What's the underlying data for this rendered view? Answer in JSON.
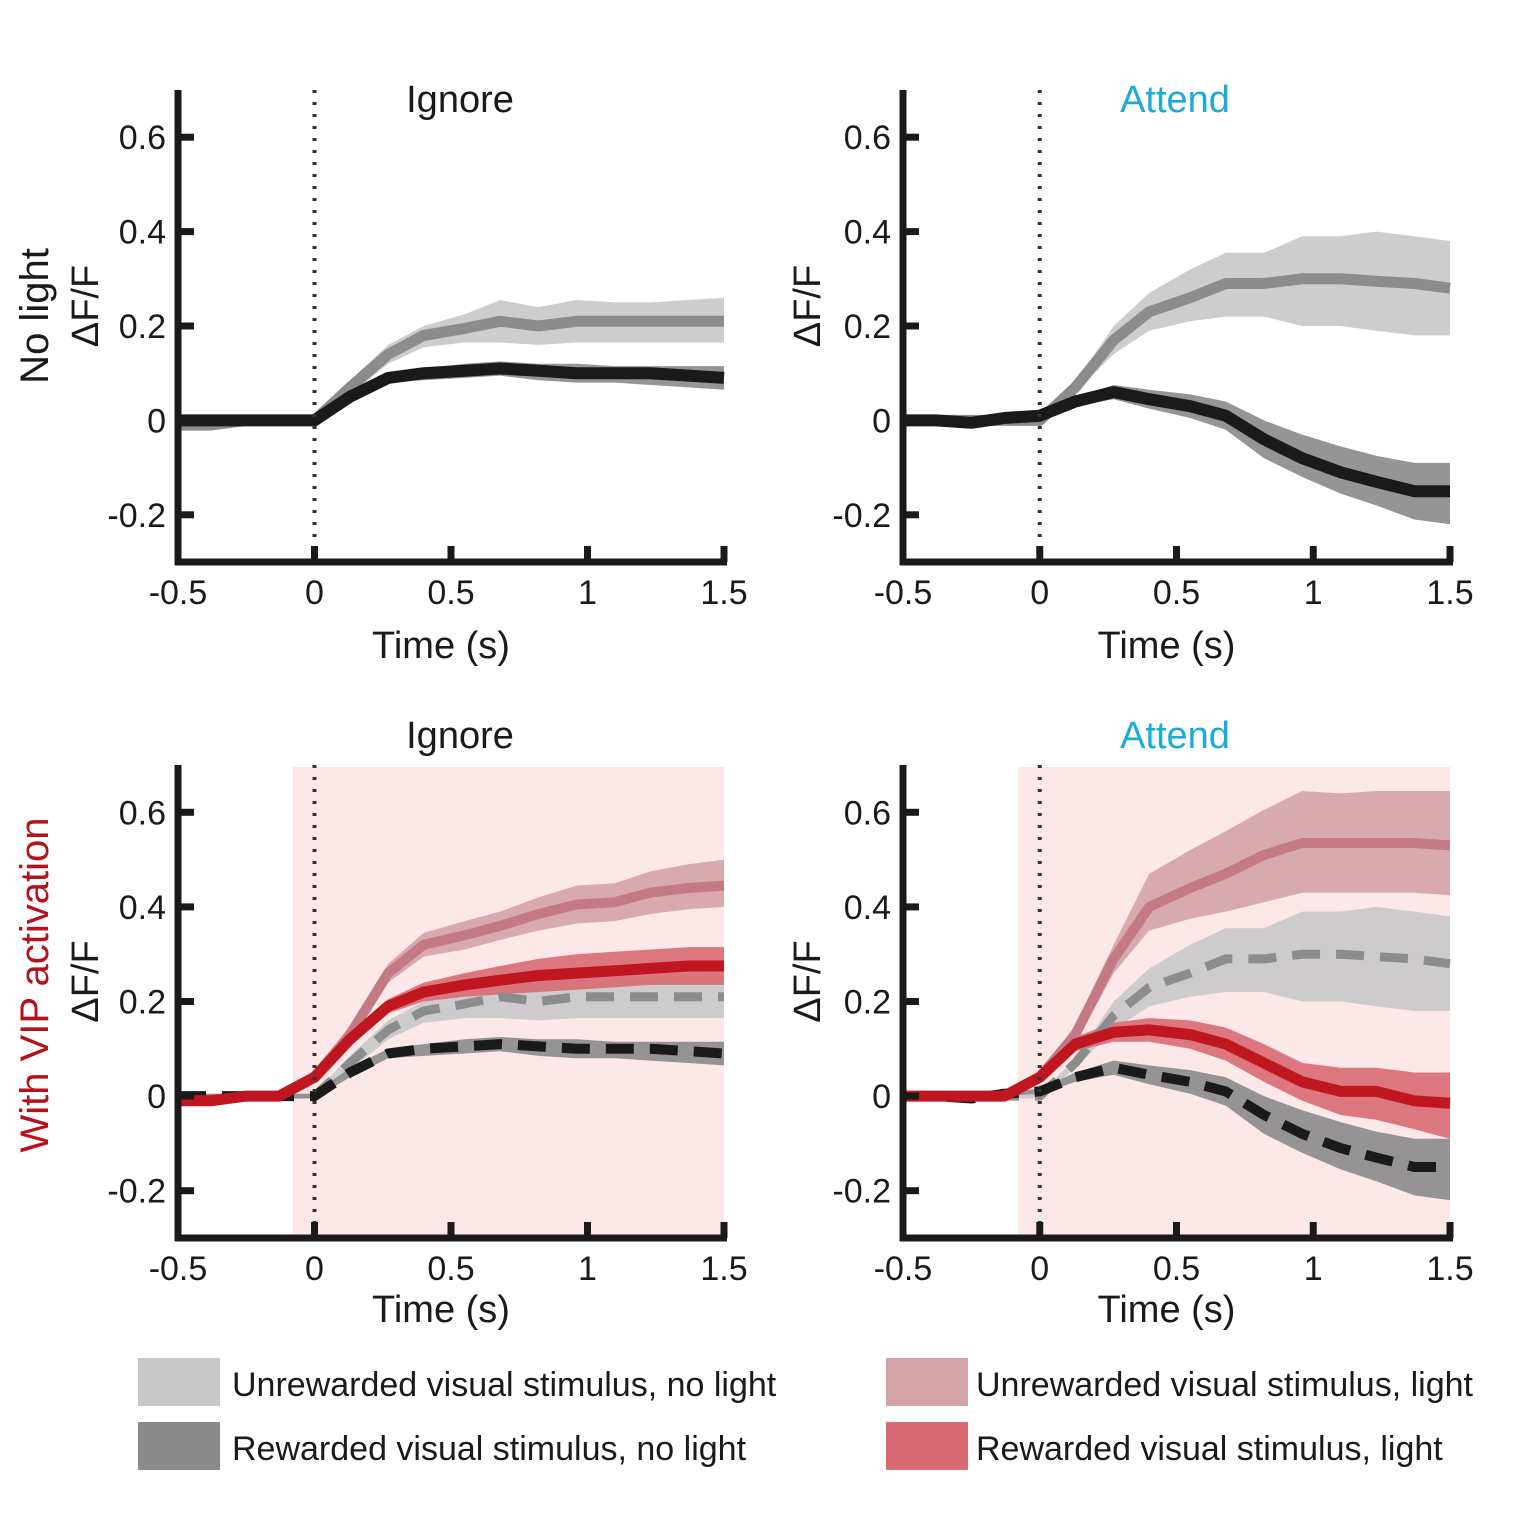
{
  "row_labels": [
    {
      "text": "No light",
      "color": "#1a1a1a"
    },
    {
      "text": "With VIP activation",
      "color": "#b5121b"
    }
  ],
  "colors": {
    "unrewarded_nolight_band": "#c8c8c8",
    "unrewarded_nolight_line": "#8c8c8c",
    "rewarded_nolight_band": "#8a8a8a",
    "rewarded_nolight_line": "#1a1a1a",
    "unrewarded_light_band": "#d4a3a8",
    "unrewarded_light_line": "#c47a83",
    "rewarded_light_band": "#d86a73",
    "rewarded_light_line": "#c0161f",
    "light_period": "#fce8e8",
    "attend_title": "#1aacd8",
    "ignore_title": "#1a1a1a"
  },
  "legend": [
    {
      "label": "Unrewarded visual stimulus, no light",
      "color": "#c8c8c8"
    },
    {
      "label": "Rewarded visual stimulus, no light",
      "color": "#8a8a8a"
    },
    {
      "label": "Unrewarded visual stimulus, light",
      "color": "#d4a3a8"
    },
    {
      "label": "Rewarded visual stimulus, light",
      "color": "#d86a73"
    }
  ],
  "chart_data": [
    {
      "type": "line",
      "title": "Ignore",
      "title_color": "#1a1a1a",
      "xlabel": "Time (s)",
      "ylabel": "ΔF/F",
      "xlim": [
        -0.5,
        1.5
      ],
      "ylim": [
        -0.3,
        0.7
      ],
      "xticks": [
        "-0.5",
        "0",
        "0.5",
        "1",
        "1.5"
      ],
      "xtick_values": [
        -0.5,
        0,
        0.5,
        1,
        1.5
      ],
      "yticks": [
        "-0.2",
        "0",
        "0.2",
        "0.4",
        "0.6"
      ],
      "ytick_values": [
        -0.2,
        0,
        0.2,
        0.4,
        0.6
      ],
      "light_period": null,
      "x": [
        -0.5,
        -0.38,
        -0.25,
        -0.13,
        0,
        0.13,
        0.27,
        0.4,
        0.55,
        0.68,
        0.82,
        0.96,
        1.1,
        1.23,
        1.37,
        1.5
      ],
      "series": [
        {
          "name": "Unrewarded visual stimulus, no light",
          "key": "unrewarded_nolight",
          "dashed": false,
          "width": 11,
          "values": [
            -0.01,
            -0.01,
            0.0,
            0.0,
            0.0,
            0.07,
            0.14,
            0.18,
            0.195,
            0.21,
            0.2,
            0.21,
            0.21,
            0.21,
            0.21,
            0.21
          ],
          "upper": [
            0.0,
            0.0,
            0.005,
            0.005,
            0.005,
            0.085,
            0.16,
            0.2,
            0.225,
            0.255,
            0.24,
            0.255,
            0.25,
            0.25,
            0.255,
            0.26
          ],
          "lower": [
            -0.02,
            -0.02,
            -0.005,
            -0.005,
            -0.005,
            0.055,
            0.12,
            0.155,
            0.165,
            0.165,
            0.16,
            0.165,
            0.165,
            0.165,
            0.165,
            0.165
          ]
        },
        {
          "name": "Rewarded visual stimulus, no light",
          "key": "rewarded_nolight",
          "dashed": false,
          "width": 12,
          "values": [
            0.0,
            0.0,
            0.0,
            0.0,
            0.0,
            0.05,
            0.09,
            0.1,
            0.105,
            0.11,
            0.105,
            0.1,
            0.1,
            0.1,
            0.095,
            0.09
          ],
          "upper": [
            0.005,
            0.005,
            0.005,
            0.005,
            0.005,
            0.06,
            0.1,
            0.11,
            0.12,
            0.125,
            0.12,
            0.12,
            0.115,
            0.115,
            0.115,
            0.115
          ],
          "lower": [
            -0.005,
            -0.005,
            -0.005,
            -0.005,
            -0.005,
            0.04,
            0.08,
            0.085,
            0.09,
            0.095,
            0.085,
            0.08,
            0.08,
            0.075,
            0.07,
            0.065
          ]
        }
      ]
    },
    {
      "type": "line",
      "title": "Attend",
      "title_color": "#1aacd8",
      "xlabel": "Time (s)",
      "ylabel": "ΔF/F",
      "xlim": [
        -0.5,
        1.5
      ],
      "ylim": [
        -0.3,
        0.7
      ],
      "xticks": [
        "-0.5",
        "0",
        "0.5",
        "1",
        "1.5"
      ],
      "xtick_values": [
        -0.5,
        0,
        0.5,
        1,
        1.5
      ],
      "yticks": [
        "-0.2",
        "0",
        "0.2",
        "0.4",
        "0.6"
      ],
      "yticks_values_note": "",
      "ytick_values": [
        -0.2,
        0,
        0.2,
        0.4,
        0.6
      ],
      "light_period": null,
      "x": [
        -0.5,
        -0.38,
        -0.25,
        -0.13,
        0,
        0.13,
        0.27,
        0.4,
        0.55,
        0.68,
        0.82,
        0.96,
        1.1,
        1.23,
        1.37,
        1.5
      ],
      "series": [
        {
          "name": "Unrewarded visual stimulus, no light",
          "key": "unrewarded_nolight",
          "dashed": false,
          "width": 11,
          "values": [
            0.0,
            0.0,
            0.0,
            0.0,
            0.0,
            0.07,
            0.17,
            0.23,
            0.26,
            0.29,
            0.29,
            0.3,
            0.3,
            0.295,
            0.29,
            0.28
          ],
          "upper": [
            0.005,
            0.005,
            0.005,
            0.005,
            0.005,
            0.08,
            0.2,
            0.27,
            0.32,
            0.355,
            0.355,
            0.39,
            0.39,
            0.4,
            0.39,
            0.38
          ],
          "lower": [
            -0.005,
            -0.005,
            -0.005,
            -0.005,
            -0.005,
            0.06,
            0.14,
            0.19,
            0.21,
            0.22,
            0.22,
            0.2,
            0.2,
            0.19,
            0.18,
            0.18
          ]
        },
        {
          "name": "Rewarded visual stimulus, no light",
          "key": "rewarded_nolight",
          "dashed": false,
          "width": 12,
          "values": [
            0.0,
            0.0,
            -0.005,
            0.005,
            0.01,
            0.04,
            0.06,
            0.045,
            0.03,
            0.01,
            -0.04,
            -0.08,
            -0.11,
            -0.13,
            -0.15,
            -0.15
          ],
          "upper": [
            0.005,
            0.005,
            0.0,
            0.01,
            0.015,
            0.05,
            0.075,
            0.065,
            0.055,
            0.04,
            0.0,
            -0.03,
            -0.055,
            -0.075,
            -0.09,
            -0.09
          ],
          "lower": [
            -0.005,
            -0.005,
            -0.01,
            0.0,
            0.005,
            0.03,
            0.045,
            0.025,
            0.005,
            -0.02,
            -0.08,
            -0.12,
            -0.155,
            -0.18,
            -0.21,
            -0.22
          ]
        }
      ]
    },
    {
      "type": "line",
      "title": "Ignore",
      "title_color": "#1a1a1a",
      "xlabel": "Time (s)",
      "ylabel": "ΔF/F",
      "xlim": [
        -0.5,
        1.5
      ],
      "ylim": [
        -0.3,
        0.7
      ],
      "xticks": [
        "-0.5",
        "0",
        "0.5",
        "1",
        "1.5"
      ],
      "xtick_values": [
        -0.5,
        0,
        0.5,
        1,
        1.5
      ],
      "yticks": [
        "-0.2",
        "0",
        "0.2",
        "0.4",
        "0.6"
      ],
      "ytick_values": [
        -0.2,
        0,
        0.2,
        0.4,
        0.6
      ],
      "light_period": [
        -0.08,
        1.5
      ],
      "x": [
        -0.5,
        -0.38,
        -0.25,
        -0.13,
        0,
        0.13,
        0.27,
        0.4,
        0.55,
        0.68,
        0.82,
        0.96,
        1.1,
        1.23,
        1.37,
        1.5
      ],
      "series": [
        {
          "name": "Unrewarded visual stimulus, no light",
          "key": "unrewarded_nolight",
          "dashed": true,
          "width": 9,
          "values": [
            0.0,
            0.0,
            0.0,
            0.0,
            0.0,
            0.07,
            0.14,
            0.18,
            0.195,
            0.21,
            0.2,
            0.21,
            0.21,
            0.21,
            0.21,
            0.21
          ],
          "upper": [
            0.005,
            0.005,
            0.005,
            0.005,
            0.005,
            0.085,
            0.16,
            0.2,
            0.225,
            0.255,
            0.24,
            0.255,
            0.25,
            0.25,
            0.255,
            0.26
          ],
          "lower": [
            -0.005,
            -0.005,
            -0.005,
            -0.005,
            -0.005,
            0.055,
            0.12,
            0.155,
            0.165,
            0.165,
            0.16,
            0.165,
            0.165,
            0.165,
            0.165,
            0.165
          ]
        },
        {
          "name": "Rewarded visual stimulus, no light",
          "key": "rewarded_nolight",
          "dashed": true,
          "width": 10,
          "values": [
            0.0,
            0.0,
            0.0,
            0.0,
            0.0,
            0.05,
            0.09,
            0.1,
            0.105,
            0.11,
            0.105,
            0.1,
            0.1,
            0.1,
            0.095,
            0.09
          ],
          "upper": [
            0.005,
            0.005,
            0.005,
            0.005,
            0.005,
            0.06,
            0.1,
            0.11,
            0.12,
            0.125,
            0.12,
            0.12,
            0.115,
            0.115,
            0.115,
            0.115
          ],
          "lower": [
            -0.005,
            -0.005,
            -0.005,
            -0.005,
            -0.005,
            0.04,
            0.08,
            0.085,
            0.09,
            0.095,
            0.085,
            0.08,
            0.08,
            0.075,
            0.07,
            0.065
          ]
        },
        {
          "name": "Unrewarded visual stimulus, light",
          "key": "unrewarded_light",
          "dashed": false,
          "width": 10,
          "values": [
            -0.01,
            -0.01,
            0.0,
            0.0,
            0.04,
            0.13,
            0.26,
            0.32,
            0.34,
            0.36,
            0.385,
            0.405,
            0.41,
            0.43,
            0.44,
            0.445
          ],
          "upper": [
            0.0,
            0.0,
            0.005,
            0.005,
            0.05,
            0.15,
            0.28,
            0.345,
            0.37,
            0.39,
            0.42,
            0.445,
            0.45,
            0.475,
            0.49,
            0.5
          ],
          "lower": [
            -0.02,
            -0.02,
            -0.005,
            -0.005,
            0.03,
            0.11,
            0.24,
            0.295,
            0.31,
            0.33,
            0.35,
            0.365,
            0.37,
            0.385,
            0.395,
            0.4
          ]
        },
        {
          "name": "Rewarded visual stimulus, light",
          "key": "rewarded_light",
          "dashed": false,
          "width": 11,
          "values": [
            -0.01,
            -0.01,
            0.0,
            0.0,
            0.04,
            0.12,
            0.19,
            0.22,
            0.235,
            0.245,
            0.255,
            0.26,
            0.265,
            0.27,
            0.275,
            0.275
          ],
          "upper": [
            0.0,
            0.0,
            0.005,
            0.005,
            0.05,
            0.135,
            0.205,
            0.24,
            0.26,
            0.275,
            0.29,
            0.3,
            0.305,
            0.31,
            0.315,
            0.315
          ],
          "lower": [
            -0.02,
            -0.02,
            -0.005,
            -0.005,
            0.03,
            0.105,
            0.175,
            0.2,
            0.21,
            0.215,
            0.22,
            0.225,
            0.23,
            0.235,
            0.235,
            0.235
          ]
        }
      ]
    },
    {
      "type": "line",
      "title": "Attend",
      "title_color": "#1aacd8",
      "xlabel": "Time (s)",
      "ylabel": "ΔF/F",
      "xlim": [
        -0.5,
        1.5
      ],
      "ylim": [
        -0.3,
        0.7
      ],
      "xticks": [
        "-0.5",
        "0",
        "0.5",
        "1",
        "1.5"
      ],
      "xtick_values": [
        -0.5,
        0,
        0.5,
        1,
        1.5
      ],
      "yticks": [
        "-0.2",
        "0",
        "0.2",
        "0.4",
        "0.6"
      ],
      "ytick_values": [
        -0.2,
        0,
        0.2,
        0.4,
        0.6
      ],
      "light_period": [
        -0.08,
        1.5
      ],
      "x": [
        -0.5,
        -0.38,
        -0.25,
        -0.13,
        0,
        0.13,
        0.27,
        0.4,
        0.55,
        0.68,
        0.82,
        0.96,
        1.1,
        1.23,
        1.37,
        1.5
      ],
      "series": [
        {
          "name": "Unrewarded visual stimulus, no light",
          "key": "unrewarded_nolight",
          "dashed": true,
          "width": 9,
          "values": [
            0.0,
            0.0,
            0.0,
            0.0,
            0.0,
            0.07,
            0.17,
            0.23,
            0.26,
            0.29,
            0.29,
            0.3,
            0.3,
            0.295,
            0.29,
            0.28
          ],
          "upper": [
            0.005,
            0.005,
            0.005,
            0.005,
            0.005,
            0.08,
            0.2,
            0.27,
            0.32,
            0.355,
            0.355,
            0.39,
            0.39,
            0.4,
            0.39,
            0.38
          ],
          "lower": [
            -0.005,
            -0.005,
            -0.005,
            -0.005,
            -0.005,
            0.06,
            0.14,
            0.19,
            0.21,
            0.22,
            0.22,
            0.2,
            0.2,
            0.19,
            0.18,
            0.18
          ]
        },
        {
          "name": "Rewarded visual stimulus, no light",
          "key": "rewarded_nolight",
          "dashed": true,
          "width": 10,
          "values": [
            0.0,
            0.0,
            -0.005,
            0.005,
            0.01,
            0.04,
            0.06,
            0.045,
            0.03,
            0.01,
            -0.04,
            -0.08,
            -0.11,
            -0.13,
            -0.15,
            -0.15
          ],
          "upper": [
            0.005,
            0.005,
            0.0,
            0.01,
            0.015,
            0.05,
            0.075,
            0.065,
            0.055,
            0.04,
            0.0,
            -0.03,
            -0.055,
            -0.075,
            -0.09,
            -0.09
          ],
          "lower": [
            -0.005,
            -0.005,
            -0.01,
            0.0,
            0.005,
            0.03,
            0.045,
            0.025,
            0.005,
            -0.02,
            -0.08,
            -0.12,
            -0.155,
            -0.18,
            -0.21,
            -0.22
          ]
        },
        {
          "name": "Unrewarded visual stimulus, light",
          "key": "unrewarded_light",
          "dashed": false,
          "width": 10,
          "values": [
            0.0,
            0.0,
            0.0,
            0.0,
            0.04,
            0.13,
            0.29,
            0.4,
            0.44,
            0.47,
            0.51,
            0.535,
            0.535,
            0.535,
            0.535,
            0.53
          ],
          "upper": [
            0.005,
            0.005,
            0.005,
            0.005,
            0.05,
            0.15,
            0.32,
            0.47,
            0.52,
            0.56,
            0.605,
            0.645,
            0.64,
            0.645,
            0.645,
            0.645
          ],
          "lower": [
            -0.005,
            -0.005,
            -0.005,
            -0.005,
            0.03,
            0.11,
            0.26,
            0.35,
            0.375,
            0.39,
            0.41,
            0.43,
            0.43,
            0.43,
            0.43,
            0.425
          ]
        },
        {
          "name": "Rewarded visual stimulus, light",
          "key": "rewarded_light",
          "dashed": false,
          "width": 11,
          "values": [
            0.0,
            0.0,
            0.0,
            0.0,
            0.04,
            0.11,
            0.135,
            0.14,
            0.13,
            0.11,
            0.07,
            0.03,
            0.01,
            0.01,
            -0.01,
            -0.015
          ],
          "upper": [
            0.005,
            0.005,
            0.005,
            0.005,
            0.05,
            0.125,
            0.155,
            0.165,
            0.16,
            0.145,
            0.11,
            0.07,
            0.06,
            0.06,
            0.05,
            0.05
          ],
          "lower": [
            -0.005,
            -0.005,
            -0.005,
            -0.005,
            0.03,
            0.095,
            0.115,
            0.115,
            0.1,
            0.075,
            0.03,
            -0.01,
            -0.04,
            -0.05,
            -0.07,
            -0.09
          ]
        }
      ]
    }
  ]
}
